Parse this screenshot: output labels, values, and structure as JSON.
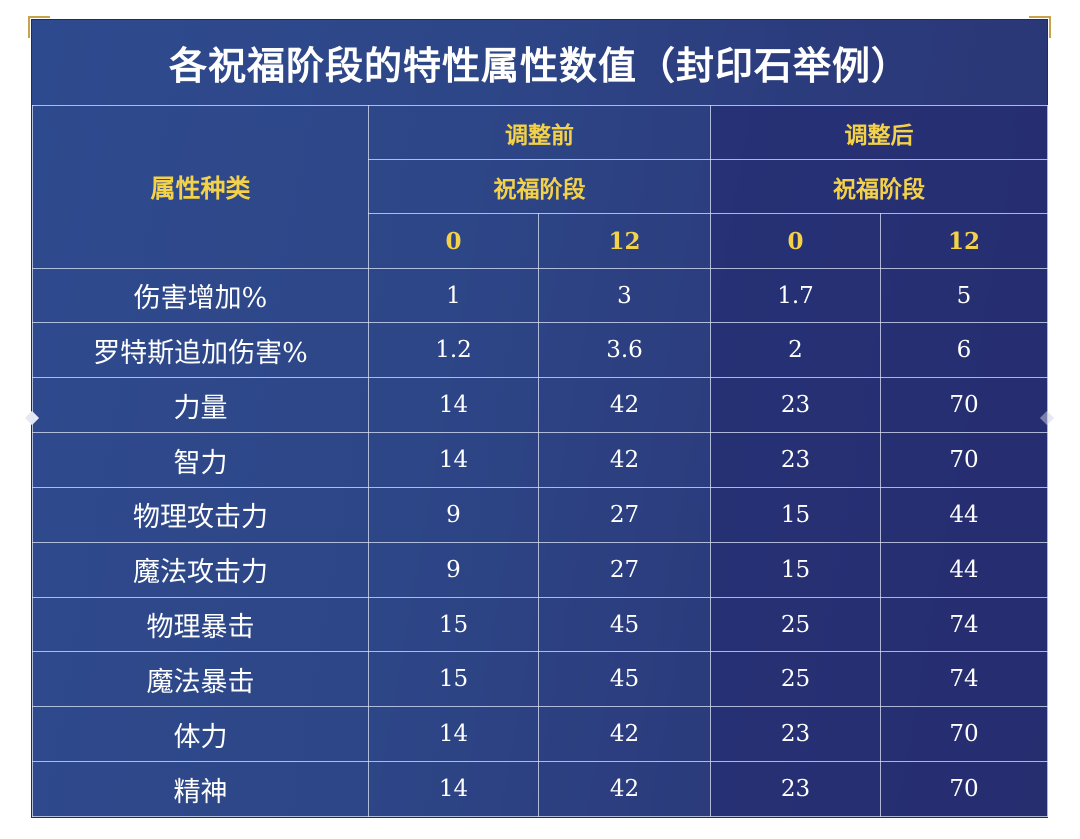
{
  "title": "各祝福阶段的特性属性数值（封印石举例）",
  "header": {
    "category_label": "属性种类",
    "group_before": "调整前",
    "group_after": "调整后",
    "stage_label": "祝福阶段",
    "stages": [
      "0",
      "12",
      "0",
      "12"
    ]
  },
  "colors": {
    "background": "#2d4687",
    "header_text": "#f3d24a",
    "body_text": "#ffffff"
  },
  "chart_data": {
    "type": "table",
    "title": "各祝福阶段的特性属性数值（封印石举例）",
    "columns": [
      "属性种类",
      "调整前 祝福阶段 0",
      "调整前 祝福阶段 12",
      "调整后 祝福阶段 0",
      "调整后 祝福阶段 12"
    ],
    "rows": [
      {
        "label": "伤害增加%",
        "values": [
          "1",
          "3",
          "1.7",
          "5"
        ]
      },
      {
        "label": "罗特斯追加伤害%",
        "values": [
          "1.2",
          "3.6",
          "2",
          "6"
        ]
      },
      {
        "label": "力量",
        "values": [
          "14",
          "42",
          "23",
          "70"
        ]
      },
      {
        "label": "智力",
        "values": [
          "14",
          "42",
          "23",
          "70"
        ]
      },
      {
        "label": "物理攻击力",
        "values": [
          "9",
          "27",
          "15",
          "44"
        ]
      },
      {
        "label": "魔法攻击力",
        "values": [
          "9",
          "27",
          "15",
          "44"
        ]
      },
      {
        "label": "物理暴击",
        "values": [
          "15",
          "45",
          "25",
          "74"
        ]
      },
      {
        "label": "魔法暴击",
        "values": [
          "15",
          "45",
          "25",
          "74"
        ]
      },
      {
        "label": "体力",
        "values": [
          "14",
          "42",
          "23",
          "70"
        ]
      },
      {
        "label": "精神",
        "values": [
          "14",
          "42",
          "23",
          "70"
        ]
      }
    ]
  }
}
